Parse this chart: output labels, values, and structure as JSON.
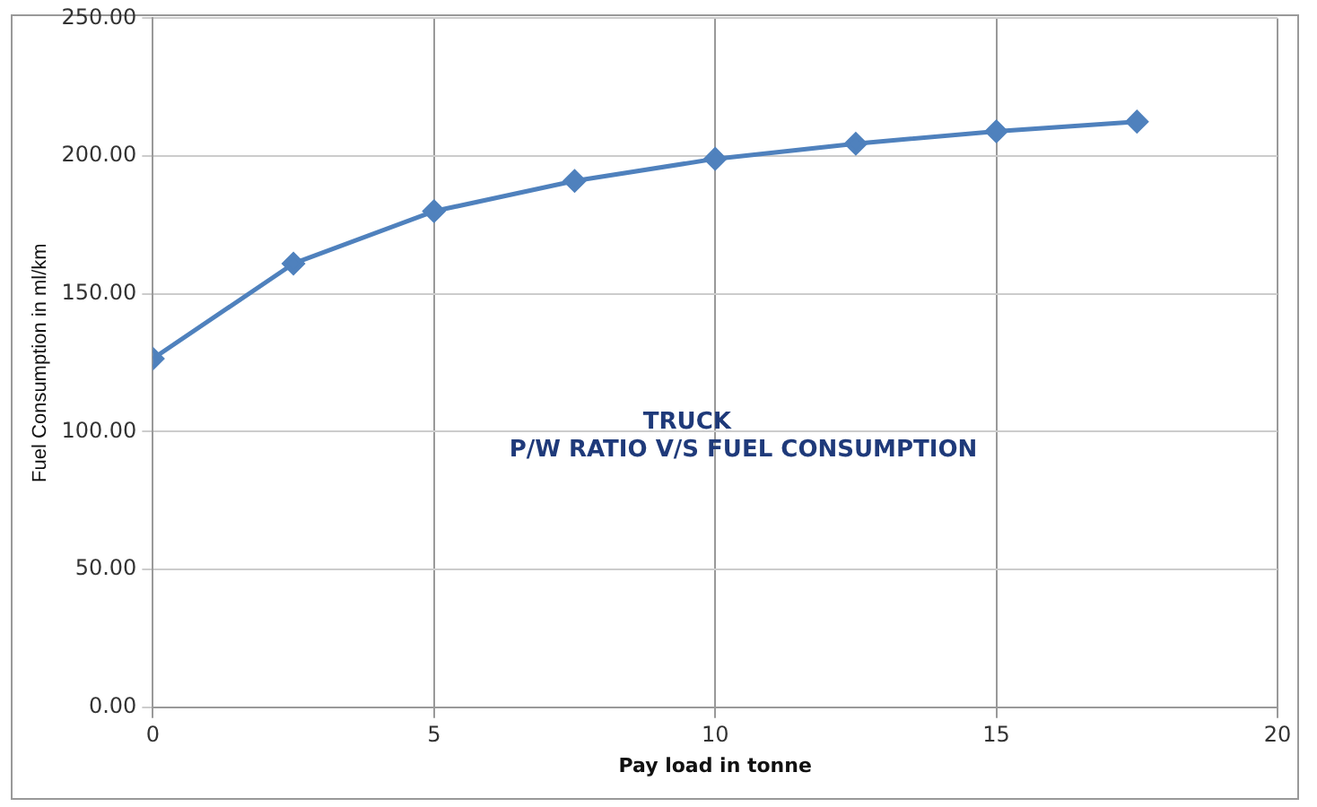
{
  "chart_data": {
    "type": "line",
    "title": "TRUCK",
    "subtitle": "P/W RATIO V/S FUEL CONSUMPTION",
    "xlabel": "Pay load in tonne",
    "ylabel": "Fuel Consumption in ml/km",
    "x": [
      0,
      2.5,
      5,
      7.5,
      10,
      12.5,
      15,
      17.5
    ],
    "series": [
      {
        "color": "#4f81bd",
        "values": [
          126.5,
          161,
          180,
          191,
          199,
          204.5,
          209,
          212.5
        ]
      }
    ],
    "xlim": [
      0,
      20
    ],
    "xticks": [
      0,
      5,
      10,
      15,
      20
    ],
    "ylim": [
      0,
      250
    ],
    "yticks": [
      {
        "value": 0,
        "label": "0.00"
      },
      {
        "value": 50,
        "label": "50.00"
      },
      {
        "value": 100,
        "label": "100.00"
      },
      {
        "value": 150,
        "label": "150.00"
      },
      {
        "value": 200,
        "label": "200.00"
      },
      {
        "value": 250,
        "label": "250.00"
      }
    ],
    "grid": true,
    "marker": "diamond",
    "line_style": "solid",
    "legend": false
  }
}
